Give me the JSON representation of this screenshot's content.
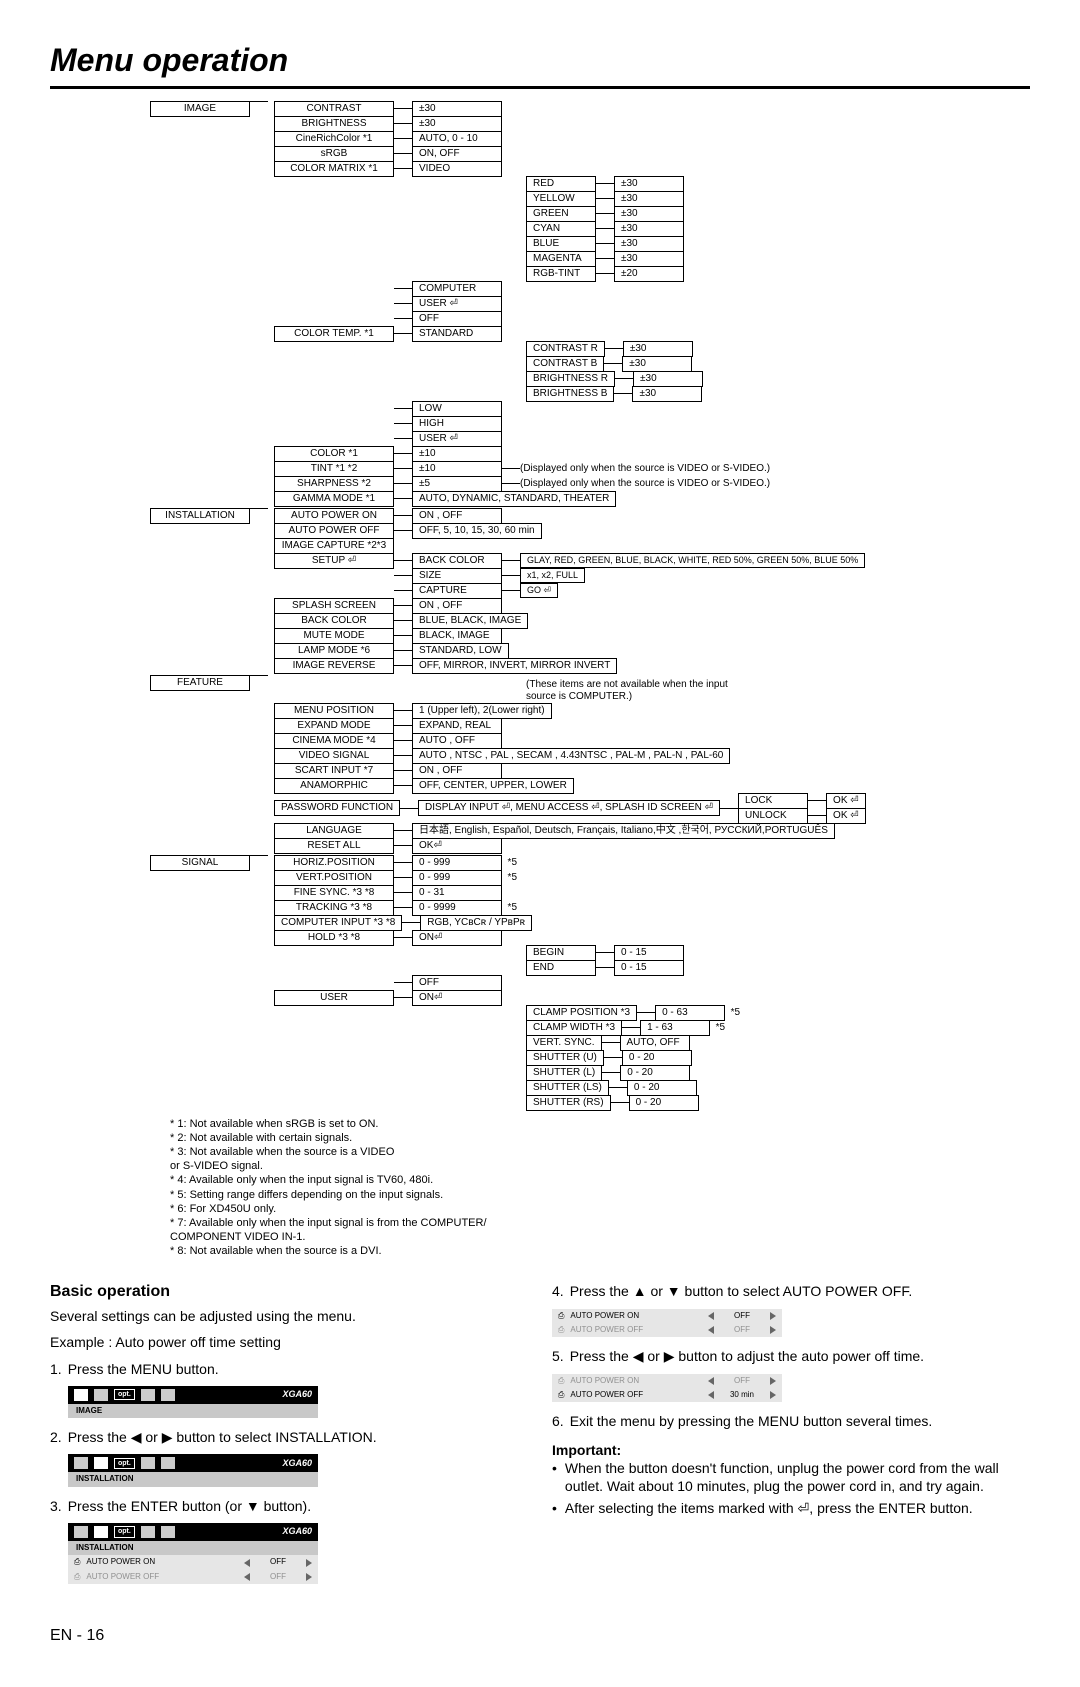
{
  "title": "Menu operation",
  "tree": {
    "image": {
      "name": "IMAGE",
      "rows": [
        {
          "k": "CONTRAST",
          "v": "±30"
        },
        {
          "k": "BRIGHTNESS",
          "v": "±30"
        },
        {
          "k": "CineRichColor  *1",
          "v": "AUTO, 0 - 10"
        },
        {
          "k": "sRGB",
          "v": "ON, OFF"
        },
        {
          "k": "COLOR MATRIX  *1",
          "v": "VIDEO",
          "sub": [
            {
              "k": "RED",
              "v": "±30"
            },
            {
              "k": "YELLOW",
              "v": "±30"
            },
            {
              "k": "GREEN",
              "v": "±30"
            },
            {
              "k": "CYAN",
              "v": "±30"
            },
            {
              "k": "BLUE",
              "v": "±30"
            },
            {
              "k": "MAGENTA",
              "v": "±30"
            },
            {
              "k": "RGB-TINT",
              "v": "±20"
            }
          ]
        },
        {
          "k": "",
          "v": "COMPUTER"
        },
        {
          "k": "",
          "v": "USER ⏎"
        },
        {
          "k": "",
          "v": "OFF"
        },
        {
          "k": "COLOR TEMP.   *1",
          "v": "STANDARD",
          "sub": [
            {
              "k": "CONTRAST R",
              "v": "±30"
            },
            {
              "k": "CONTRAST B",
              "v": "±30"
            },
            {
              "k": "BRIGHTNESS R",
              "v": "±30"
            },
            {
              "k": "BRIGHTNESS B",
              "v": "±30"
            }
          ]
        },
        {
          "k": "",
          "v": "LOW"
        },
        {
          "k": "",
          "v": "HIGH"
        },
        {
          "k": "",
          "v": "USER ⏎"
        },
        {
          "k": "COLOR        *1",
          "v": "±10"
        },
        {
          "k": "TINT        *1 *2",
          "v": "±10",
          "note": "(Displayed only when the source is VIDEO or S-VIDEO.)"
        },
        {
          "k": "SHARPNESS    *2",
          "v": "±5",
          "note": "(Displayed only when the source is VIDEO or S-VIDEO.)"
        },
        {
          "k": "GAMMA MODE  *1",
          "v": "AUTO, DYNAMIC, STANDARD, THEATER",
          "wide": true
        }
      ]
    },
    "installation": {
      "name": "INSTALLATION",
      "rows": [
        {
          "k": "AUTO POWER ON",
          "v": "ON , OFF"
        },
        {
          "k": "AUTO POWER OFF",
          "v": "OFF,  5,  10,  15,  30,  60 min",
          "wide": true
        },
        {
          "k": "IMAGE CAPTURE *2*3"
        },
        {
          "k": "SETUP ⏎",
          "v": "BACK COLOR",
          "note": "GLAY, RED, GREEN, BLUE, BLACK, WHITE, RED 50%, GREEN 50%, BLUE 50%"
        },
        {
          "k": "",
          "v": "SIZE",
          "note": "x1, x2, FULL"
        },
        {
          "k": "",
          "v": "CAPTURE",
          "note": "GO ⏎"
        },
        {
          "k": "SPLASH SCREEN",
          "v": "ON , OFF"
        },
        {
          "k": "BACK COLOR",
          "v": "BLUE, BLACK, IMAGE"
        },
        {
          "k": "MUTE MODE",
          "v": "BLACK, IMAGE"
        },
        {
          "k": "LAMP MODE    *6",
          "v": "STANDARD, LOW"
        },
        {
          "k": "IMAGE REVERSE",
          "v": "OFF, MIRROR, INVERT, MIRROR INVERT",
          "wide": true
        }
      ]
    },
    "feature": {
      "name": "FEATURE",
      "rows": [
        {
          "k": "MENU POSITION",
          "v": "1 (Upper left), 2(Lower right)",
          "wide": true
        },
        {
          "k": "EXPAND MODE",
          "v": "EXPAND, REAL"
        },
        {
          "k": "CINEMA MODE  *4",
          "v": "AUTO , OFF"
        },
        {
          "k": "VIDEO SIGNAL",
          "v": "AUTO , NTSC , PAL , SECAM , 4.43NTSC , PAL-M , PAL-N , PAL-60",
          "wide": true
        },
        {
          "k": "SCART INPUT   *7",
          "v": "ON , OFF"
        },
        {
          "k": "ANAMORPHIC",
          "v": "OFF, CENTER, UPPER, LOWER",
          "wide": true
        },
        {
          "k": "PASSWORD FUNCTION",
          "v": "DISPLAY INPUT ⏎, MENU ACCESS ⏎, SPLASH ID SCREEN  ⏎",
          "wide": true,
          "lock": true
        },
        {
          "k": "LANGUAGE",
          "v": "日本語, English, Español, Deutsch, Français, Italiano,中文 ,한국어, РУССКИЙ,PORTUGUÊS",
          "wide": true
        },
        {
          "k": "RESET ALL",
          "v": "OK⏎"
        }
      ],
      "lock": {
        "a": "LOCK",
        "b": "UNLOCK",
        "ok": "OK ⏎"
      },
      "sidenote": "(These items are not available when the input source is COMPUTER.)"
    },
    "signal": {
      "name": "SIGNAL",
      "rows": [
        {
          "k": "HORIZ.POSITION",
          "v": "0 - 999",
          "fn": "*5"
        },
        {
          "k": "VERT.POSITION",
          "v": "0 - 999",
          "fn": "*5"
        },
        {
          "k": "FINE SYNC.   *3 *8",
          "v": "0 - 31"
        },
        {
          "k": "TRACKING    *3 *8",
          "v": "0 - 9999",
          "fn": "*5"
        },
        {
          "k": "COMPUTER INPUT  *3 *8",
          "v": "RGB, YCʙCʀ / YPʙPʀ",
          "wide": true
        },
        {
          "k": "HOLD        *3 *8",
          "v": "ON⏎",
          "sub": [
            {
              "k": "BEGIN",
              "v": "0 - 15"
            },
            {
              "k": "END",
              "v": "0 - 15"
            }
          ]
        },
        {
          "k": "",
          "v": "OFF"
        },
        {
          "k": "USER",
          "v": "ON⏎",
          "sub": [
            {
              "k": "CLAMP POSITION *3",
              "v": "0 - 63",
              "fn": "*5"
            },
            {
              "k": "CLAMP WIDTH   *3",
              "v": "1 - 63",
              "fn": "*5"
            },
            {
              "k": "VERT. SYNC.",
              "v": "AUTO, OFF"
            },
            {
              "k": "SHUTTER (U)",
              "v": "0 - 20"
            },
            {
              "k": "SHUTTER (L)",
              "v": "0 - 20"
            },
            {
              "k": "SHUTTER (LS)",
              "v": "0 - 20"
            },
            {
              "k": "SHUTTER (RS)",
              "v": "0 - 20"
            }
          ]
        }
      ]
    }
  },
  "footnotes": [
    "* 1: Not available when sRGB is set to ON.",
    "* 2: Not available with certain signals.",
    "* 3: Not available when the source is a VIDEO",
    "      or S-VIDEO signal.",
    "* 4: Available only when the input signal is TV60, 480i.",
    "* 5: Setting range differs depending on the input signals.",
    "* 6: For XD450U only.",
    "* 7: Available only when the input signal is from the COMPUTER/",
    "      COMPONENT VIDEO IN-1.",
    "* 8: Not available when the source is a DVI."
  ],
  "basic": {
    "heading": "Basic operation",
    "intro": [
      "Several settings can be adjusted using the menu.",
      "Example : Auto power off time setting"
    ],
    "steps": [
      "Press the MENU button.",
      "Press the ◀ or ▶ button to select INSTALLATION.",
      "Press the ENTER button (or ▼ button)."
    ],
    "fig1_mode": "XGA60",
    "fig1_tab": "IMAGE",
    "fig2_tab": "INSTALLATION",
    "opt": "opt.",
    "rows": {
      "on": {
        "label": "AUTO POWER ON",
        "val": "OFF"
      },
      "off": {
        "label": "AUTO POWER OFF",
        "val": "OFF"
      },
      "off30": {
        "label": "AUTO POWER OFF",
        "val": "30 min"
      }
    }
  },
  "right": {
    "steps": [
      "Press the ▲ or ▼ button to select AUTO POWER OFF.",
      "Press the ◀ or ▶ button to adjust the auto power off time.",
      "Exit the menu by pressing the MENU button several times."
    ],
    "important": "Important:",
    "bullets": [
      "When the button doesn't function,  unplug the power cord from the wall outlet. Wait about 10 minutes, plug the power cord in, and try again.",
      "After selecting the items marked with ⏎, press the ENTER button."
    ]
  },
  "page": "EN - 16"
}
